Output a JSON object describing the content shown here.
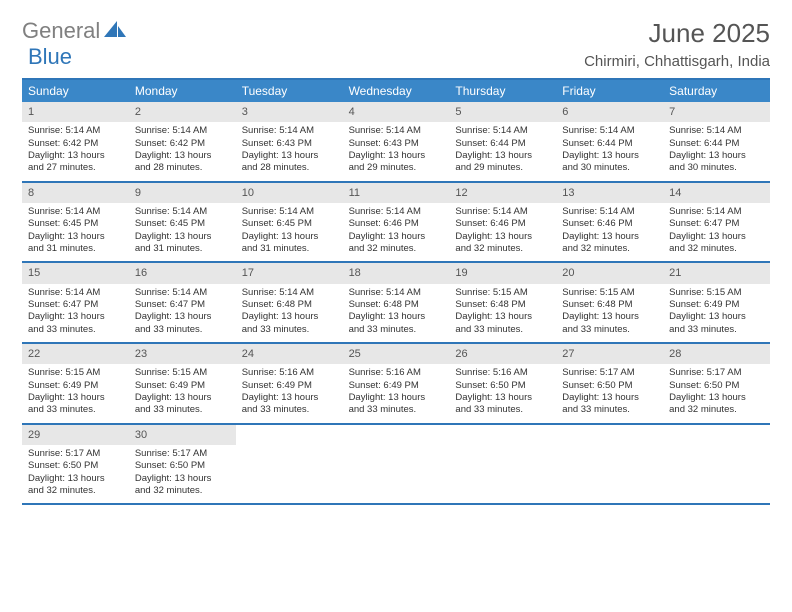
{
  "logo": {
    "text1": "General",
    "text2": "Blue",
    "color1": "#808080",
    "color2": "#2f76b8"
  },
  "title": "June 2025",
  "location": "Chirmiri, Chhattisgarh, India",
  "colors": {
    "header_bg": "#3a87c8",
    "header_text": "#ffffff",
    "border": "#2f76b8",
    "daynum_bg": "#e7e7e7",
    "text": "#333333"
  },
  "layout": {
    "columns": 7,
    "rows": 5,
    "cell_font_size": 9.5
  },
  "daynames": [
    "Sunday",
    "Monday",
    "Tuesday",
    "Wednesday",
    "Thursday",
    "Friday",
    "Saturday"
  ],
  "weeks": [
    [
      {
        "n": "1",
        "sr": "Sunrise: 5:14 AM",
        "ss": "Sunset: 6:42 PM",
        "dl1": "Daylight: 13 hours",
        "dl2": "and 27 minutes."
      },
      {
        "n": "2",
        "sr": "Sunrise: 5:14 AM",
        "ss": "Sunset: 6:42 PM",
        "dl1": "Daylight: 13 hours",
        "dl2": "and 28 minutes."
      },
      {
        "n": "3",
        "sr": "Sunrise: 5:14 AM",
        "ss": "Sunset: 6:43 PM",
        "dl1": "Daylight: 13 hours",
        "dl2": "and 28 minutes."
      },
      {
        "n": "4",
        "sr": "Sunrise: 5:14 AM",
        "ss": "Sunset: 6:43 PM",
        "dl1": "Daylight: 13 hours",
        "dl2": "and 29 minutes."
      },
      {
        "n": "5",
        "sr": "Sunrise: 5:14 AM",
        "ss": "Sunset: 6:44 PM",
        "dl1": "Daylight: 13 hours",
        "dl2": "and 29 minutes."
      },
      {
        "n": "6",
        "sr": "Sunrise: 5:14 AM",
        "ss": "Sunset: 6:44 PM",
        "dl1": "Daylight: 13 hours",
        "dl2": "and 30 minutes."
      },
      {
        "n": "7",
        "sr": "Sunrise: 5:14 AM",
        "ss": "Sunset: 6:44 PM",
        "dl1": "Daylight: 13 hours",
        "dl2": "and 30 minutes."
      }
    ],
    [
      {
        "n": "8",
        "sr": "Sunrise: 5:14 AM",
        "ss": "Sunset: 6:45 PM",
        "dl1": "Daylight: 13 hours",
        "dl2": "and 31 minutes."
      },
      {
        "n": "9",
        "sr": "Sunrise: 5:14 AM",
        "ss": "Sunset: 6:45 PM",
        "dl1": "Daylight: 13 hours",
        "dl2": "and 31 minutes."
      },
      {
        "n": "10",
        "sr": "Sunrise: 5:14 AM",
        "ss": "Sunset: 6:45 PM",
        "dl1": "Daylight: 13 hours",
        "dl2": "and 31 minutes."
      },
      {
        "n": "11",
        "sr": "Sunrise: 5:14 AM",
        "ss": "Sunset: 6:46 PM",
        "dl1": "Daylight: 13 hours",
        "dl2": "and 32 minutes."
      },
      {
        "n": "12",
        "sr": "Sunrise: 5:14 AM",
        "ss": "Sunset: 6:46 PM",
        "dl1": "Daylight: 13 hours",
        "dl2": "and 32 minutes."
      },
      {
        "n": "13",
        "sr": "Sunrise: 5:14 AM",
        "ss": "Sunset: 6:46 PM",
        "dl1": "Daylight: 13 hours",
        "dl2": "and 32 minutes."
      },
      {
        "n": "14",
        "sr": "Sunrise: 5:14 AM",
        "ss": "Sunset: 6:47 PM",
        "dl1": "Daylight: 13 hours",
        "dl2": "and 32 minutes."
      }
    ],
    [
      {
        "n": "15",
        "sr": "Sunrise: 5:14 AM",
        "ss": "Sunset: 6:47 PM",
        "dl1": "Daylight: 13 hours",
        "dl2": "and 33 minutes."
      },
      {
        "n": "16",
        "sr": "Sunrise: 5:14 AM",
        "ss": "Sunset: 6:47 PM",
        "dl1": "Daylight: 13 hours",
        "dl2": "and 33 minutes."
      },
      {
        "n": "17",
        "sr": "Sunrise: 5:14 AM",
        "ss": "Sunset: 6:48 PM",
        "dl1": "Daylight: 13 hours",
        "dl2": "and 33 minutes."
      },
      {
        "n": "18",
        "sr": "Sunrise: 5:14 AM",
        "ss": "Sunset: 6:48 PM",
        "dl1": "Daylight: 13 hours",
        "dl2": "and 33 minutes."
      },
      {
        "n": "19",
        "sr": "Sunrise: 5:15 AM",
        "ss": "Sunset: 6:48 PM",
        "dl1": "Daylight: 13 hours",
        "dl2": "and 33 minutes."
      },
      {
        "n": "20",
        "sr": "Sunrise: 5:15 AM",
        "ss": "Sunset: 6:48 PM",
        "dl1": "Daylight: 13 hours",
        "dl2": "and 33 minutes."
      },
      {
        "n": "21",
        "sr": "Sunrise: 5:15 AM",
        "ss": "Sunset: 6:49 PM",
        "dl1": "Daylight: 13 hours",
        "dl2": "and 33 minutes."
      }
    ],
    [
      {
        "n": "22",
        "sr": "Sunrise: 5:15 AM",
        "ss": "Sunset: 6:49 PM",
        "dl1": "Daylight: 13 hours",
        "dl2": "and 33 minutes."
      },
      {
        "n": "23",
        "sr": "Sunrise: 5:15 AM",
        "ss": "Sunset: 6:49 PM",
        "dl1": "Daylight: 13 hours",
        "dl2": "and 33 minutes."
      },
      {
        "n": "24",
        "sr": "Sunrise: 5:16 AM",
        "ss": "Sunset: 6:49 PM",
        "dl1": "Daylight: 13 hours",
        "dl2": "and 33 minutes."
      },
      {
        "n": "25",
        "sr": "Sunrise: 5:16 AM",
        "ss": "Sunset: 6:49 PM",
        "dl1": "Daylight: 13 hours",
        "dl2": "and 33 minutes."
      },
      {
        "n": "26",
        "sr": "Sunrise: 5:16 AM",
        "ss": "Sunset: 6:50 PM",
        "dl1": "Daylight: 13 hours",
        "dl2": "and 33 minutes."
      },
      {
        "n": "27",
        "sr": "Sunrise: 5:17 AM",
        "ss": "Sunset: 6:50 PM",
        "dl1": "Daylight: 13 hours",
        "dl2": "and 33 minutes."
      },
      {
        "n": "28",
        "sr": "Sunrise: 5:17 AM",
        "ss": "Sunset: 6:50 PM",
        "dl1": "Daylight: 13 hours",
        "dl2": "and 32 minutes."
      }
    ],
    [
      {
        "n": "29",
        "sr": "Sunrise: 5:17 AM",
        "ss": "Sunset: 6:50 PM",
        "dl1": "Daylight: 13 hours",
        "dl2": "and 32 minutes."
      },
      {
        "n": "30",
        "sr": "Sunrise: 5:17 AM",
        "ss": "Sunset: 6:50 PM",
        "dl1": "Daylight: 13 hours",
        "dl2": "and 32 minutes."
      },
      {
        "empty": true
      },
      {
        "empty": true
      },
      {
        "empty": true
      },
      {
        "empty": true
      },
      {
        "empty": true
      }
    ]
  ]
}
